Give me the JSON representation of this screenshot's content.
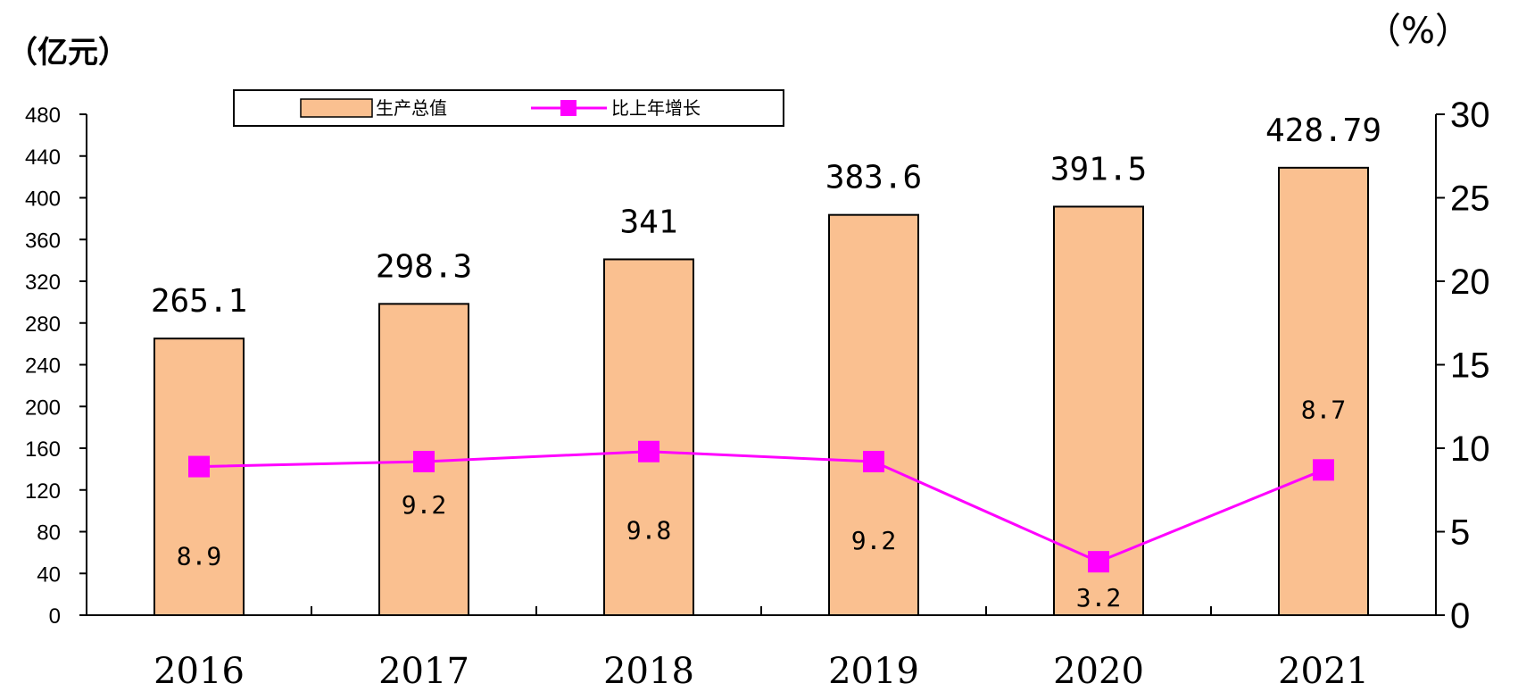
{
  "chart_data": {
    "type": "bar",
    "categories": [
      "2016",
      "2017",
      "2018",
      "2019",
      "2020",
      "2021"
    ],
    "series": [
      {
        "name": "生产总值",
        "type": "bar",
        "axis": "left",
        "values": [
          265.1,
          298.3,
          341,
          383.6,
          391.5,
          428.79
        ],
        "labels": [
          "265.1",
          "298.3",
          "341",
          "383.6",
          "391.5",
          "428.79"
        ],
        "color": "#FAC090"
      },
      {
        "name": "比上年增长",
        "type": "line",
        "axis": "right",
        "values": [
          8.9,
          9.2,
          9.8,
          9.2,
          3.2,
          8.7
        ],
        "labels": [
          "8.9",
          "9.2",
          "9.8",
          "9.2",
          "3.2",
          "8.7"
        ],
        "color": "#FF00FF"
      }
    ],
    "y_left": {
      "unit": "（亿元）",
      "range": [
        0,
        480
      ],
      "ticks": [
        "0",
        "40",
        "80",
        "120",
        "160",
        "200",
        "240",
        "280",
        "320",
        "360",
        "400",
        "440",
        "480"
      ]
    },
    "y_right": {
      "unit": "（%）",
      "range": [
        0,
        30
      ],
      "ticks": [
        "0",
        "5",
        "10",
        "15",
        "20",
        "25",
        "30"
      ]
    },
    "legend_position": "top",
    "grid": false
  }
}
